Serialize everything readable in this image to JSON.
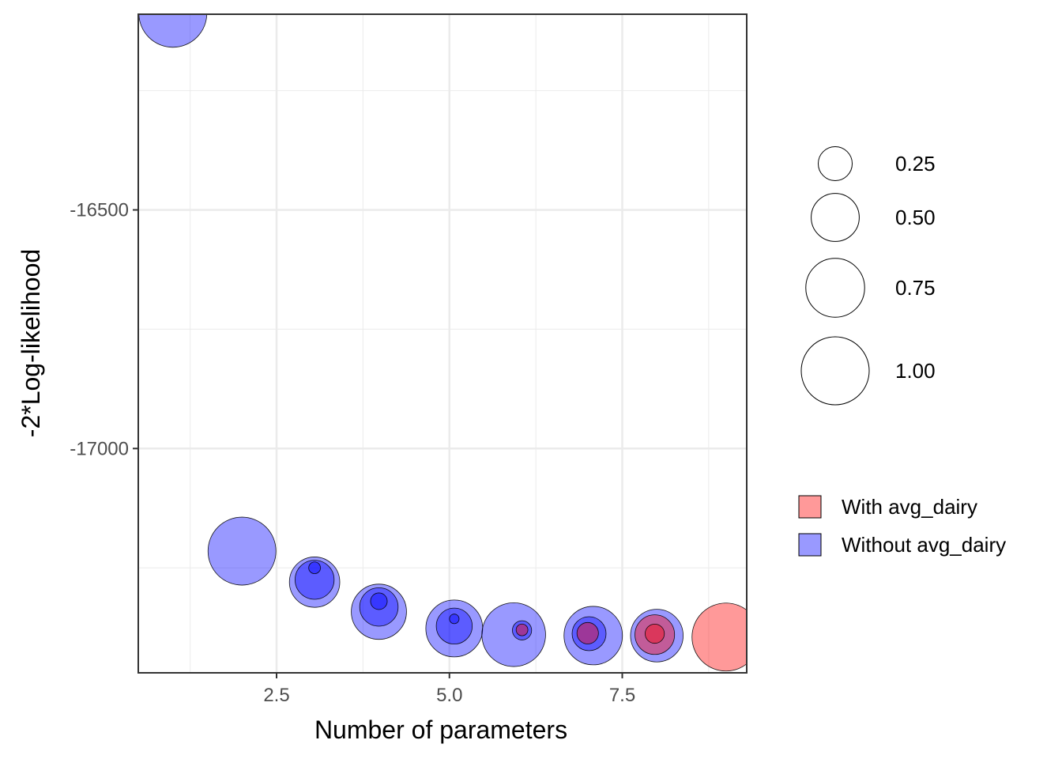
{
  "chart_data": {
    "type": "scatter",
    "xlabel": "Number of parameters",
    "ylabel": "-2*Log-likelihood",
    "xlim": [
      0.5,
      9.3
    ],
    "ylim": [
      -17470,
      -16090
    ],
    "x_ticks": [
      {
        "value": 2.5,
        "label": "2.5"
      },
      {
        "value": 5.0,
        "label": "5.0"
      },
      {
        "value": 7.5,
        "label": "7.5"
      }
    ],
    "y_ticks": [
      {
        "value": -16500,
        "label": "-16500"
      },
      {
        "value": -17000,
        "label": "-17000"
      }
    ],
    "grid": true,
    "size_legend": {
      "entries": [
        {
          "value": 0.25,
          "label": "0.25"
        },
        {
          "value": 0.5,
          "label": "0.50"
        },
        {
          "value": 0.75,
          "label": "0.75"
        },
        {
          "value": 1.0,
          "label": "1.00"
        }
      ]
    },
    "fill_legend": {
      "placement": "right",
      "entries": [
        {
          "label": "With avg_dairy",
          "color": "#ff0000"
        },
        {
          "label": "Without avg_dairy",
          "color": "#0000ff"
        }
      ]
    },
    "series": [
      {
        "color": "#0000ff",
        "opacity": 0.4,
        "points": [
          {
            "x": 1,
            "y": -16088,
            "size": 1.0
          },
          {
            "x": 2,
            "y": -17215,
            "size": 1.0
          },
          {
            "x": 3.05,
            "y": -17280,
            "size": 0.55
          },
          {
            "x": 3.05,
            "y": -17275,
            "size": 0.33
          },
          {
            "x": 3.05,
            "y": -17250,
            "size": 0.03
          },
          {
            "x": 3.98,
            "y": -17342,
            "size": 0.66
          },
          {
            "x": 3.98,
            "y": -17332,
            "size": 0.32
          },
          {
            "x": 3.98,
            "y": -17320,
            "size": 0.06
          },
          {
            "x": 5.07,
            "y": -17377,
            "size": 0.7
          },
          {
            "x": 5.07,
            "y": -17372,
            "size": 0.28
          },
          {
            "x": 5.07,
            "y": -17357,
            "size": 0.02
          },
          {
            "x": 5.93,
            "y": -17390,
            "size": 0.88
          },
          {
            "x": 6.05,
            "y": -17381,
            "size": 0.08
          },
          {
            "x": 7.08,
            "y": -17392,
            "size": 0.74
          },
          {
            "x": 7.02,
            "y": -17388,
            "size": 0.25
          },
          {
            "x": 8.0,
            "y": -17392,
            "size": 0.6
          }
        ]
      },
      {
        "color": "#ff0000",
        "opacity": 0.4,
        "points": [
          {
            "x": 6.05,
            "y": -17380,
            "size": 0.03
          },
          {
            "x": 7.0,
            "y": -17387,
            "size": 0.1
          },
          {
            "x": 7.97,
            "y": -17390,
            "size": 0.34
          },
          {
            "x": 7.97,
            "y": -17388,
            "size": 0.08
          },
          {
            "x": 9.0,
            "y": -17395,
            "size": 1.0
          }
        ]
      }
    ]
  }
}
